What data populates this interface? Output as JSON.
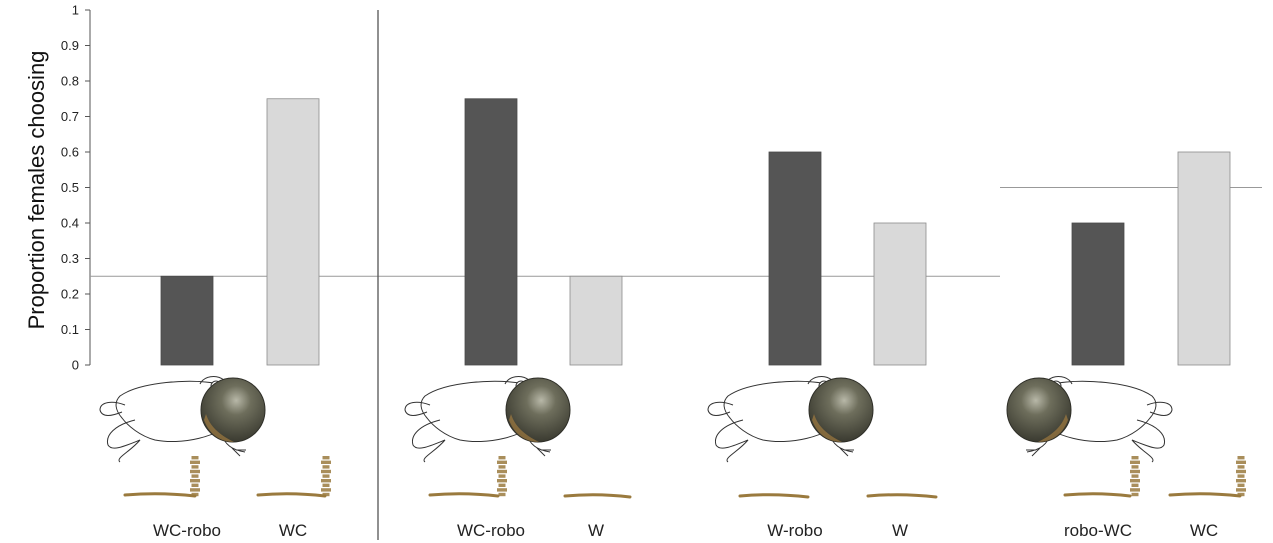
{
  "chart_data": {
    "type": "bar",
    "ylabel": "Proportion females choosing",
    "ylim": [
      0,
      1
    ],
    "yticks": [
      "0",
      "0.1",
      "0.2",
      "0.3",
      "0.4",
      "0.5",
      "0.6",
      "0.7",
      "0.8",
      "0.9",
      "1"
    ],
    "grid": false,
    "legend": "none",
    "groups": [
      {
        "bars": [
          {
            "label": "WC-robo",
            "value": 0.25,
            "role": "robo"
          },
          {
            "label": "WC",
            "value": 0.75,
            "role": "playback"
          }
        ],
        "chance_level": 0.25
      },
      {
        "bars": [
          {
            "label": "WC-robo",
            "value": 0.75,
            "role": "robo"
          },
          {
            "label": "W",
            "value": 0.25,
            "role": "playback"
          }
        ],
        "chance_level": 0.25
      },
      {
        "bars": [
          {
            "label": "W-robo",
            "value": 0.6,
            "role": "robo"
          },
          {
            "label": "W",
            "value": 0.4,
            "role": "playback"
          }
        ],
        "chance_level": 0.25
      },
      {
        "bars": [
          {
            "label": "robo-WC",
            "value": 0.4,
            "role": "robo"
          },
          {
            "label": "WC",
            "value": 0.6,
            "role": "playback"
          }
        ],
        "chance_level": 0.5
      }
    ],
    "colors": {
      "robo": "#555555",
      "playback": "#d9d9d9",
      "axis": "#555555",
      "reference": "#999999",
      "frog_sac": "#5a5a48",
      "sac_tint": "#a07a40",
      "spectrogram": "#9a7a3e"
    }
  }
}
